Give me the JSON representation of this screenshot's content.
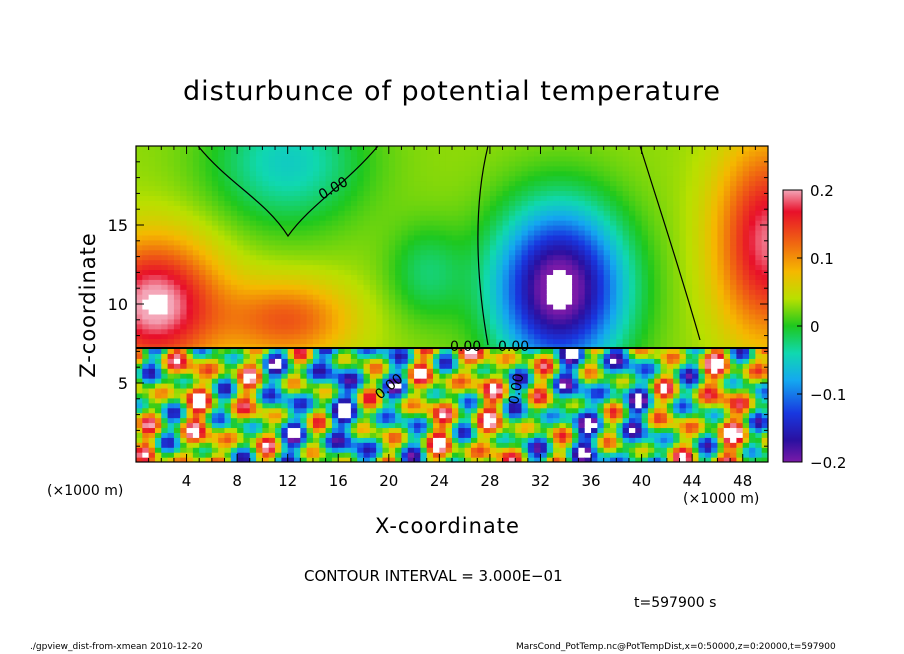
{
  "chart_data": {
    "type": "heatmap",
    "title": "disturbunce of potential temperature",
    "xlabel": "X-coordinate",
    "ylabel": "Z-coordinate",
    "x_unit": "(×1000 m)",
    "x_ticks": [
      4,
      8,
      12,
      16,
      20,
      24,
      28,
      32,
      36,
      40,
      44,
      48
    ],
    "y_ticks": [
      5,
      10,
      15
    ],
    "xlim": [
      0,
      50
    ],
    "ylim": [
      0,
      20
    ],
    "colorbar": {
      "ticks": [
        "0.2",
        "0.1",
        "0",
        "−0.1",
        "−0.2"
      ],
      "tick_values": [
        0.2,
        0.1,
        0,
        -0.1,
        -0.2
      ],
      "range": [
        -0.2,
        0.2
      ]
    },
    "contour_labels": [
      "0.00",
      "0.00",
      "0.00",
      "0.00",
      "0.00"
    ],
    "contour_interval": "CONTOUR INTERVAL = 3.000E−01",
    "time": "t=597900 s"
  },
  "footer": {
    "left": "./gpview_dist-from-xmean  2010-12-20",
    "right": "MarsCond_PotTemp.nc@PotTempDist,x=0:50000,z=0:20000,t=597900"
  },
  "colors": {
    "high": "#d7191c",
    "mid": "#1aaa1a",
    "low": "#2c1f9e",
    "saturated_high": "#ffffff",
    "saturated_low": "#ffffff"
  }
}
